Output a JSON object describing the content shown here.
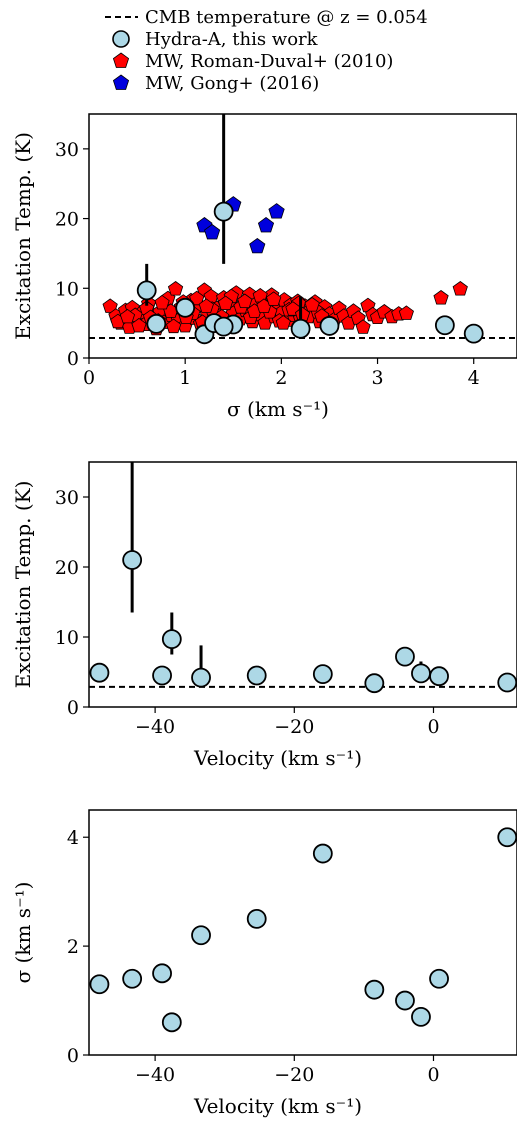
{
  "legend": {
    "cmb": "CMB temperature @ z = 0.054",
    "hydra": "Hydra-A, this work",
    "rd": "MW, Roman-Duval+ (2010)",
    "gong": "MW, Gong+ (2016)"
  },
  "colors": {
    "hydra_fill": "#add8e6",
    "rd_fill": "#ff0000",
    "gong_fill": "#0000dd",
    "edge": "#000000"
  },
  "chart_data": [
    {
      "type": "scatter",
      "xlabel": "σ (km s⁻¹)",
      "ylabel": "Excitation Temp. (K)",
      "xlim": [
        0,
        4.45
      ],
      "ylim": [
        0,
        35
      ],
      "xticks": [
        0,
        1,
        2,
        3,
        4
      ],
      "yticks": [
        0,
        10,
        20,
        30
      ],
      "hline": {
        "name": "CMB temperature @ z = 0.054",
        "y": 2.87
      },
      "series": [
        {
          "name": "MW, Roman-Duval+ (2010)",
          "marker": "pentagon",
          "points": [
            [
              0.22,
              7.4
            ],
            [
              0.28,
              6.0
            ],
            [
              0.33,
              5.0
            ],
            [
              0.38,
              6.8
            ],
            [
              0.42,
              4.4
            ],
            [
              0.45,
              7.2
            ],
            [
              0.5,
              5.5
            ],
            [
              0.55,
              6.5
            ],
            [
              0.58,
              4.8
            ],
            [
              0.62,
              7.8
            ],
            [
              0.66,
              5.9
            ],
            [
              0.7,
              4.2
            ],
            [
              0.74,
              6.6
            ],
            [
              0.78,
              5.1
            ],
            [
              0.82,
              8.5
            ],
            [
              0.86,
              6.1
            ],
            [
              0.9,
              9.9
            ],
            [
              0.93,
              5.4
            ],
            [
              0.96,
              7.3
            ],
            [
              1.0,
              4.6
            ],
            [
              1.03,
              6.9
            ],
            [
              1.06,
              8.2
            ],
            [
              1.1,
              5.7
            ],
            [
              1.13,
              7.6
            ],
            [
              1.16,
              4.9
            ],
            [
              1.2,
              9.7
            ],
            [
              1.23,
              6.3
            ],
            [
              1.27,
              8.8
            ],
            [
              1.3,
              5.3
            ],
            [
              1.33,
              7.1
            ],
            [
              1.36,
              6.0
            ],
            [
              1.4,
              8.6
            ],
            [
              1.43,
              4.8
            ],
            [
              1.47,
              7.9
            ],
            [
              1.5,
              6.4
            ],
            [
              1.53,
              9.3
            ],
            [
              1.57,
              5.6
            ],
            [
              1.6,
              7.5
            ],
            [
              1.63,
              6.8
            ],
            [
              1.67,
              9.1
            ],
            [
              1.7,
              5.2
            ],
            [
              1.73,
              7.7
            ],
            [
              1.77,
              6.2
            ],
            [
              1.8,
              8.4
            ],
            [
              1.83,
              5.0
            ],
            [
              1.87,
              7.2
            ],
            [
              1.9,
              9.0
            ],
            [
              1.93,
              5.9
            ],
            [
              1.97,
              7.0
            ],
            [
              2.0,
              6.5
            ],
            [
              2.03,
              8.3
            ],
            [
              2.07,
              5.4
            ],
            [
              2.1,
              7.6
            ],
            [
              2.13,
              6.1
            ],
            [
              2.17,
              8.1
            ],
            [
              2.2,
              5.6
            ],
            [
              2.25,
              7.4
            ],
            [
              2.3,
              6.8
            ],
            [
              2.35,
              8.0
            ],
            [
              2.4,
              5.2
            ],
            [
              2.45,
              7.3
            ],
            [
              2.5,
              6.3
            ],
            [
              2.55,
              5.5
            ],
            [
              2.6,
              7.1
            ],
            [
              2.65,
              6.0
            ],
            [
              2.7,
              5.0
            ],
            [
              2.75,
              6.7
            ],
            [
              2.8,
              5.7
            ],
            [
              2.85,
              4.4
            ],
            [
              2.9,
              7.5
            ],
            [
              2.95,
              6.2
            ],
            [
              3.0,
              5.8
            ],
            [
              3.07,
              6.6
            ],
            [
              3.15,
              5.9
            ],
            [
              3.22,
              6.3
            ],
            [
              3.3,
              6.4
            ],
            [
              3.66,
              8.6
            ],
            [
              3.86,
              9.9
            ],
            [
              0.3,
              5.2
            ],
            [
              0.48,
              6.1
            ],
            [
              0.6,
              7.1
            ],
            [
              0.72,
              5.3
            ],
            [
              0.85,
              6.7
            ],
            [
              0.98,
              8.0
            ],
            [
              1.08,
              6.4
            ],
            [
              1.18,
              5.1
            ],
            [
              1.28,
              7.0
            ],
            [
              1.38,
              5.9
            ],
            [
              1.48,
              8.8
            ],
            [
              1.58,
              7.3
            ],
            [
              1.68,
              5.8
            ],
            [
              1.78,
              8.9
            ],
            [
              1.88,
              6.6
            ],
            [
              1.98,
              5.3
            ],
            [
              2.08,
              6.9
            ],
            [
              2.18,
              7.8
            ],
            [
              2.28,
              5.9
            ],
            [
              2.38,
              6.6
            ],
            [
              0.4,
              5.9
            ],
            [
              0.52,
              4.6
            ],
            [
              0.64,
              5.8
            ],
            [
              0.76,
              7.9
            ],
            [
              0.88,
              4.5
            ],
            [
              1.01,
              5.8
            ],
            [
              1.12,
              8.5
            ],
            [
              1.22,
              7.4
            ],
            [
              1.32,
              4.6
            ],
            [
              1.42,
              7.8
            ],
            [
              1.52,
              5.1
            ],
            [
              1.62,
              8.1
            ],
            [
              1.72,
              6.7
            ],
            [
              1.82,
              7.4
            ],
            [
              1.92,
              8.4
            ],
            [
              2.02,
              5.0
            ],
            [
              2.12,
              7.0
            ],
            [
              2.22,
              6.2
            ],
            [
              2.32,
              7.6
            ],
            [
              2.42,
              6.0
            ]
          ]
        },
        {
          "name": "MW, Gong+ (2016)",
          "marker": "pentagon",
          "points": [
            [
              1.2,
              19.0
            ],
            [
              1.28,
              18.0
            ],
            [
              1.5,
              22.0
            ],
            [
              1.75,
              16.0
            ],
            [
              1.84,
              19.0
            ],
            [
              1.95,
              21.0
            ]
          ]
        },
        {
          "name": "Hydra-A, this work",
          "marker": "circle",
          "points": [
            {
              "x": 0.6,
              "y": 9.7,
              "err": [
                7.5,
                13.5
              ]
            },
            {
              "x": 0.7,
              "y": 4.9
            },
            {
              "x": 1.0,
              "y": 7.2
            },
            {
              "x": 1.2,
              "y": 3.4
            },
            {
              "x": 1.3,
              "y": 5.0
            },
            {
              "x": 1.4,
              "y": 21.0,
              "err": [
                13.5,
                35
              ]
            },
            {
              "x": 1.5,
              "y": 4.8
            },
            {
              "x": 1.4,
              "y": 4.5
            },
            {
              "x": 2.2,
              "y": 4.2,
              "err": [
                3.0,
                8.8
              ]
            },
            {
              "x": 2.5,
              "y": 4.6
            },
            {
              "x": 3.7,
              "y": 4.7
            },
            {
              "x": 4.0,
              "y": 3.5
            }
          ]
        }
      ]
    },
    {
      "type": "scatter",
      "xlabel": "Velocity (km s⁻¹)",
      "ylabel": "Excitation Temp. (K)",
      "xlim": [
        -49.5,
        12
      ],
      "ylim": [
        0,
        35
      ],
      "xticks": [
        -40,
        -20,
        0
      ],
      "yticks": [
        0,
        10,
        20,
        30
      ],
      "hline": {
        "name": "CMB temperature @ z = 0.054",
        "y": 2.87
      },
      "series": [
        {
          "name": "Hydra-A, this work",
          "marker": "circle",
          "points": [
            {
              "x": -48,
              "y": 4.9
            },
            {
              "x": -43.3,
              "y": 21.0,
              "err": [
                13.5,
                35
              ]
            },
            {
              "x": -39,
              "y": 4.5
            },
            {
              "x": -37.6,
              "y": 9.7,
              "err": [
                7.5,
                13.5
              ]
            },
            {
              "x": -33.4,
              "y": 4.2,
              "err": [
                3.0,
                8.8
              ]
            },
            {
              "x": -25.4,
              "y": 4.5
            },
            {
              "x": -15.9,
              "y": 4.7
            },
            {
              "x": -8.5,
              "y": 3.4
            },
            {
              "x": -4.1,
              "y": 7.2
            },
            {
              "x": -1.8,
              "y": 4.8,
              "err": [
                3.5,
                6.5
              ]
            },
            {
              "x": 0.8,
              "y": 4.4
            },
            {
              "x": 10.6,
              "y": 3.5
            }
          ]
        }
      ]
    },
    {
      "type": "scatter",
      "xlabel": "Velocity (km s⁻¹)",
      "ylabel": "σ (km s⁻¹)",
      "xlim": [
        -49.5,
        12
      ],
      "ylim": [
        0,
        4.5
      ],
      "xticks": [
        -40,
        -20,
        0
      ],
      "yticks": [
        0,
        2,
        4
      ],
      "series": [
        {
          "name": "Hydra-A, this work",
          "marker": "circle",
          "points": [
            {
              "x": -48,
              "y": 1.3
            },
            {
              "x": -43.3,
              "y": 1.4
            },
            {
              "x": -39,
              "y": 1.5
            },
            {
              "x": -37.6,
              "y": 0.6
            },
            {
              "x": -33.4,
              "y": 2.2
            },
            {
              "x": -25.4,
              "y": 2.5
            },
            {
              "x": -15.9,
              "y": 3.7
            },
            {
              "x": -8.5,
              "y": 1.2
            },
            {
              "x": -4.1,
              "y": 1.0
            },
            {
              "x": -1.8,
              "y": 0.7
            },
            {
              "x": 0.8,
              "y": 1.4
            },
            {
              "x": 10.6,
              "y": 4.0
            }
          ]
        }
      ]
    }
  ]
}
